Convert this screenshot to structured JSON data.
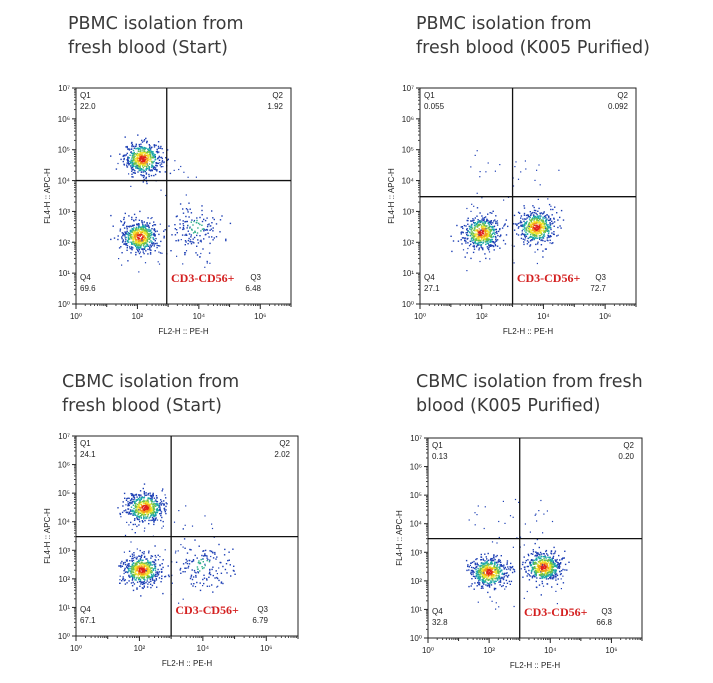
{
  "chart_data": [
    {
      "type": "scatter",
      "title": "PBMC isolation from\nfresh blood (Start)",
      "xlabel": "FL2-H :: PE-H",
      "ylabel": "FL4-H :: APC-H",
      "x_scale": "log",
      "y_scale": "log",
      "xlim": [
        1,
        10000000
      ],
      "ylim": [
        1,
        10000000
      ],
      "x_ticks": [
        "10⁰",
        "10²",
        "10⁴",
        "10⁶"
      ],
      "y_ticks": [
        "10⁰",
        "10¹",
        "10²",
        "10³",
        "10⁴",
        "10⁵",
        "10⁶",
        "10⁷"
      ],
      "gate": {
        "x": 900,
        "y": 10000
      },
      "quadrants": {
        "Q1": "22.0",
        "Q2": "1.92",
        "Q3": "6.48",
        "Q4": "69.6"
      },
      "quadrant_names": [
        "Q1",
        "Q2",
        "Q3",
        "Q4"
      ],
      "population_label": "CD3-CD56+",
      "clusters": [
        {
          "x": 150,
          "y": 50000,
          "density": "high"
        },
        {
          "x": 120,
          "y": 150,
          "density": "high"
        },
        {
          "x": 8000,
          "y": 300,
          "density": "low"
        }
      ]
    },
    {
      "type": "scatter",
      "title": "PBMC isolation from\nfresh blood (K005 Purified)",
      "xlabel": "FL2-H :: PE-H",
      "ylabel": "FL4-H :: APC-H",
      "x_scale": "log",
      "y_scale": "log",
      "xlim": [
        1,
        10000000
      ],
      "ylim": [
        1,
        10000000
      ],
      "x_ticks": [
        "10⁰",
        "10²",
        "10⁴",
        "10⁶"
      ],
      "y_ticks": [
        "10⁰",
        "10¹",
        "10²",
        "10³",
        "10⁴",
        "10⁵",
        "10⁶",
        "10⁷"
      ],
      "gate": {
        "x": 1000,
        "y": 3000
      },
      "quadrants": {
        "Q1": "0.055",
        "Q2": "0.092",
        "Q3": "72.7",
        "Q4": "27.1"
      },
      "quadrant_names": [
        "Q1",
        "Q2",
        "Q3",
        "Q4"
      ],
      "population_label": "CD3-CD56+",
      "clusters": [
        {
          "x": 100,
          "y": 200,
          "density": "high"
        },
        {
          "x": 6000,
          "y": 300,
          "density": "high"
        }
      ]
    },
    {
      "type": "scatter",
      "title": "CBMC isolation from\nfresh blood (Start)",
      "xlabel": "FL2-H :: PE-H",
      "ylabel": "FL4-H :: APC-H",
      "x_scale": "log",
      "y_scale": "log",
      "xlim": [
        1,
        10000000
      ],
      "ylim": [
        1,
        10000000
      ],
      "x_ticks": [
        "10⁰",
        "10²",
        "10⁴",
        "10⁶"
      ],
      "y_ticks": [
        "10⁰",
        "10¹",
        "10²",
        "10³",
        "10⁴",
        "10⁵",
        "10⁶",
        "10⁷"
      ],
      "gate": {
        "x": 1000,
        "y": 3000
      },
      "quadrants": {
        "Q1": "24.1",
        "Q2": "2.02",
        "Q3": "6.79",
        "Q4": "67.1"
      },
      "quadrant_names": [
        "Q1",
        "Q2",
        "Q3",
        "Q4"
      ],
      "population_label": "CD3-CD56+",
      "clusters": [
        {
          "x": 150,
          "y": 30000,
          "density": "high"
        },
        {
          "x": 120,
          "y": 200,
          "density": "high"
        },
        {
          "x": 10000,
          "y": 300,
          "density": "low"
        }
      ]
    },
    {
      "type": "scatter",
      "title": "CBMC isolation from fresh\nblood (K005 Purified)",
      "xlabel": "FL2-H :: PE-H",
      "ylabel": "FL4-H :: APC-H",
      "x_scale": "log",
      "y_scale": "log",
      "xlim": [
        1,
        10000000
      ],
      "ylim": [
        1,
        10000000
      ],
      "x_ticks": [
        "10⁰",
        "10²",
        "10⁴",
        "10⁶"
      ],
      "y_ticks": [
        "10⁰",
        "10¹",
        "10²",
        "10³",
        "10⁴",
        "10⁵",
        "10⁶",
        "10⁷"
      ],
      "gate": {
        "x": 1000,
        "y": 3000
      },
      "quadrants": {
        "Q1": "0.13",
        "Q2": "0.20",
        "Q3": "66.8",
        "Q4": "32.8"
      },
      "quadrant_names": [
        "Q1",
        "Q2",
        "Q3",
        "Q4"
      ],
      "population_label": "CD3-CD56+",
      "clusters": [
        {
          "x": 100,
          "y": 200,
          "density": "high"
        },
        {
          "x": 6000,
          "y": 300,
          "density": "high"
        }
      ]
    }
  ]
}
